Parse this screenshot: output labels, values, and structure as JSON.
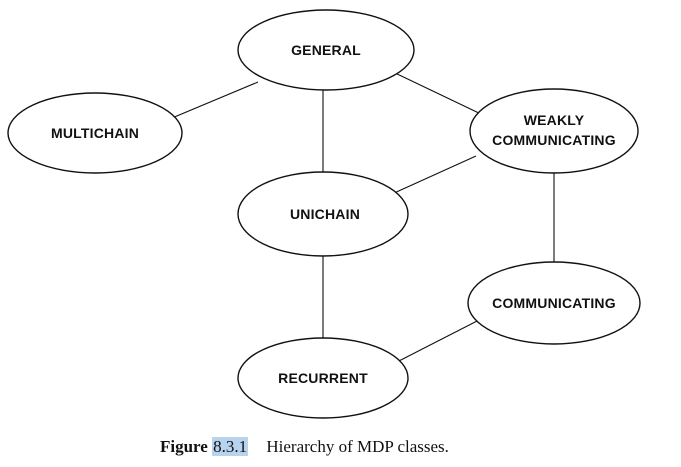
{
  "nodes": {
    "general": "GENERAL",
    "multichain": "MULTICHAIN",
    "weakly_communicating_line1": "WEAKLY",
    "weakly_communicating_line2": "COMMUNICATING",
    "unichain": "UNICHAIN",
    "communicating": "COMMUNICATING",
    "recurrent": "RECURRENT"
  },
  "caption": {
    "figure_word": "Figure",
    "figure_number": "8.3.1",
    "text": "Hierarchy of MDP classes."
  },
  "colors": {
    "number_highlight": "#b7d3ee"
  }
}
